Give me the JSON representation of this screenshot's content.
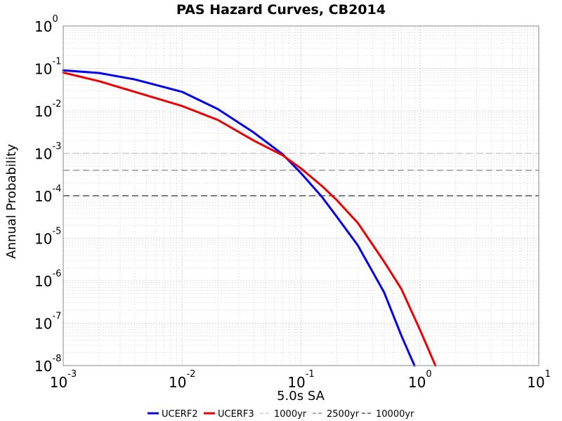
{
  "chart_data": {
    "type": "line",
    "title": "PAS Hazard Curves, CB2014",
    "xlabel": "5.0s SA",
    "ylabel": "Annual Probability",
    "xscale": "log",
    "yscale": "log",
    "xlim": [
      0.001,
      10
    ],
    "ylim": [
      1e-08,
      1
    ],
    "grid": true,
    "legend_placement": "bottom",
    "x_ticks": [
      {
        "base": "10",
        "exp": "-3",
        "value": 0.001
      },
      {
        "base": "10",
        "exp": "-2",
        "value": 0.01
      },
      {
        "base": "10",
        "exp": "-1",
        "value": 0.1
      },
      {
        "base": "10",
        "exp": "0",
        "value": 1
      },
      {
        "base": "10",
        "exp": "1",
        "value": 10
      }
    ],
    "y_ticks": [
      {
        "base": "10",
        "exp": "0",
        "value": 1
      },
      {
        "base": "10",
        "exp": "-1",
        "value": 0.1
      },
      {
        "base": "10",
        "exp": "-2",
        "value": 0.01
      },
      {
        "base": "10",
        "exp": "-3",
        "value": 0.001
      },
      {
        "base": "10",
        "exp": "-4",
        "value": 0.0001
      },
      {
        "base": "10",
        "exp": "-5",
        "value": 1e-05
      },
      {
        "base": "10",
        "exp": "-6",
        "value": 1e-06
      },
      {
        "base": "10",
        "exp": "-7",
        "value": 1e-07
      },
      {
        "base": "10",
        "exp": "-8",
        "value": 1e-08
      }
    ],
    "series": [
      {
        "name": "UCERF2",
        "color": "#0000ee",
        "style": "solid",
        "x": [
          0.001,
          0.002,
          0.004,
          0.01,
          0.02,
          0.04,
          0.07,
          0.1,
          0.15,
          0.2,
          0.3,
          0.5,
          0.7,
          0.9
        ],
        "y": [
          0.09,
          0.078,
          0.055,
          0.028,
          0.011,
          0.0031,
          0.00095,
          0.00034,
          9.4e-05,
          3.2e-05,
          6.8e-06,
          5.3e-07,
          5e-08,
          1e-08
        ]
      },
      {
        "name": "UCERF3",
        "color": "#ee0000",
        "style": "solid",
        "x": [
          0.001,
          0.002,
          0.004,
          0.01,
          0.02,
          0.04,
          0.07,
          0.1,
          0.15,
          0.2,
          0.3,
          0.5,
          0.7,
          1.0,
          1.35
        ],
        "y": [
          0.08,
          0.05,
          0.028,
          0.013,
          0.0061,
          0.002,
          0.0009,
          0.00044,
          0.00017,
          7.9e-05,
          2.3e-05,
          2.8e-06,
          6.3e-07,
          7e-08,
          1e-08
        ]
      }
    ],
    "reference_lines": [
      {
        "name": "1000yr",
        "y": 0.001,
        "color": "#cccccc",
        "style": "dashed"
      },
      {
        "name": "2500yr",
        "y": 0.0004,
        "color": "#999999",
        "style": "dashed"
      },
      {
        "name": "10000yr",
        "y": 0.0001,
        "color": "#555555",
        "style": "dashed"
      }
    ]
  }
}
